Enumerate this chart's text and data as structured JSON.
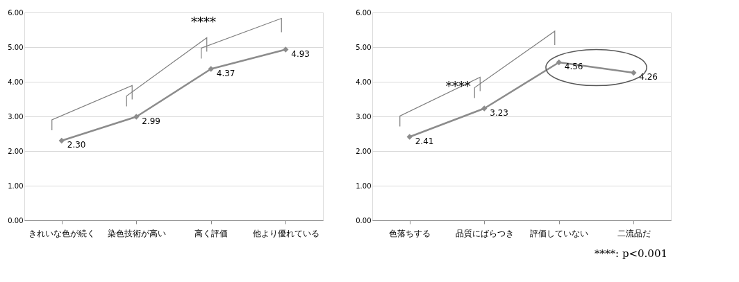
{
  "chart_data": [
    {
      "type": "line",
      "categories": [
        "きれいな色が続く",
        "染色技術が高い",
        "高く評価",
        "他より優れている"
      ],
      "series": [
        {
          "color": "#8c8c8c",
          "values": [
            2.3,
            2.99,
            4.37,
            4.93
          ],
          "value_labels": [
            "2.30",
            "2.99",
            "4.37",
            "4.93"
          ]
        }
      ],
      "ylim": [
        0,
        6
      ],
      "yticks": [
        {
          "value": 0,
          "label": "0.00"
        },
        {
          "value": 1,
          "label": "1.00"
        },
        {
          "value": 2,
          "label": "2.00"
        },
        {
          "value": 3,
          "label": "3.00"
        },
        {
          "value": 4,
          "label": "4.00"
        },
        {
          "value": 5,
          "label": "5.00"
        },
        {
          "value": 6,
          "label": "6.00"
        }
      ],
      "grid": "y",
      "marker": "diamond",
      "line_style": "solid",
      "annotations": [
        "****"
      ]
    },
    {
      "type": "line",
      "categories": [
        "色落ちする",
        "品質にばらつき",
        "評価していない",
        "二流品だ"
      ],
      "series": [
        {
          "color": "#8c8c8c",
          "values": [
            2.41,
            3.23,
            4.56,
            4.26
          ],
          "value_labels": [
            "2.41",
            "3.23",
            "4.56",
            "4.26"
          ]
        }
      ],
      "ylim": [
        0,
        6
      ],
      "yticks": [
        {
          "value": 0,
          "label": "0.00"
        },
        {
          "value": 1,
          "label": "1.00"
        },
        {
          "value": 2,
          "label": "2.00"
        },
        {
          "value": 3,
          "label": "3.00"
        },
        {
          "value": 4,
          "label": "4.00"
        },
        {
          "value": 5,
          "label": "5.00"
        },
        {
          "value": 6,
          "label": "6.00"
        }
      ],
      "grid": "y",
      "marker": "diamond",
      "line_style": "solid",
      "annotations": [
        "****",
        "****: p<0.001"
      ]
    }
  ]
}
